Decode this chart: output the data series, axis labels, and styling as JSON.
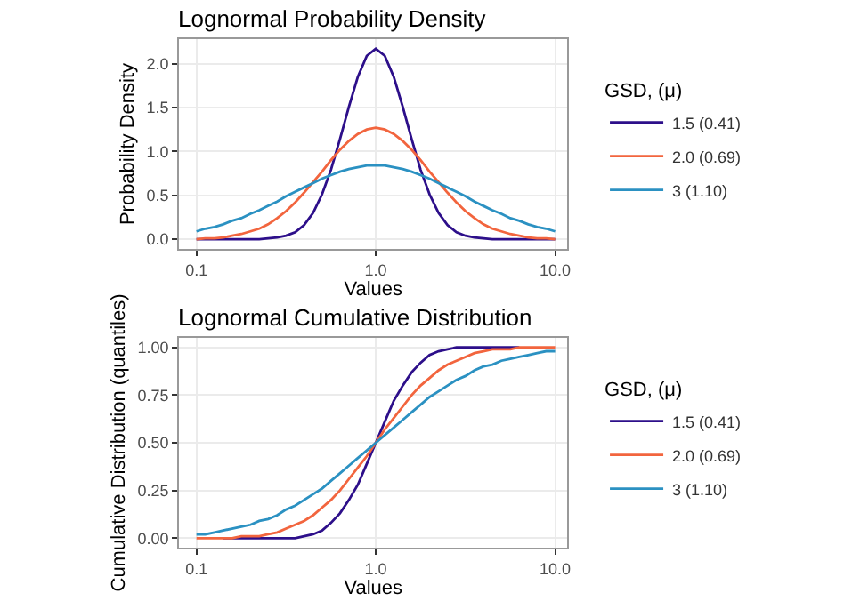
{
  "chart_data": [
    {
      "type": "line",
      "title": "Lognormal Probability Density",
      "xlabel": "Values",
      "ylabel": "Probability Density",
      "legend_title": "GSD, (μ)",
      "x": [
        0.1,
        0.112,
        0.126,
        0.141,
        0.158,
        0.178,
        0.2,
        0.224,
        0.251,
        0.282,
        0.316,
        0.355,
        0.398,
        0.447,
        0.501,
        0.562,
        0.631,
        0.708,
        0.794,
        0.891,
        1,
        1.122,
        1.259,
        1.413,
        1.585,
        1.778,
        1.995,
        2.239,
        2.512,
        2.818,
        3.162,
        3.548,
        3.981,
        4.467,
        5.012,
        5.623,
        6.31,
        7.079,
        7.943,
        8.913,
        10
      ],
      "series": [
        {
          "name": "1.5 (0.41)",
          "color": "#2d0f8a",
          "values": [
            0,
            0,
            0,
            0,
            0,
            0,
            0,
            0,
            0.01,
            0.02,
            0.04,
            0.08,
            0.16,
            0.3,
            0.51,
            0.79,
            1.14,
            1.51,
            1.85,
            2.09,
            2.17,
            2.09,
            1.85,
            1.51,
            1.14,
            0.79,
            0.51,
            0.3,
            0.16,
            0.08,
            0.04,
            0.02,
            0.01,
            0,
            0,
            0,
            0,
            0,
            0,
            0,
            0
          ]
        },
        {
          "name": "2.0 (0.69)",
          "color": "#f2653e",
          "values": [
            0.0,
            0.01,
            0.01,
            0.02,
            0.04,
            0.06,
            0.09,
            0.12,
            0.17,
            0.24,
            0.32,
            0.42,
            0.53,
            0.65,
            0.77,
            0.9,
            1.02,
            1.12,
            1.2,
            1.25,
            1.27,
            1.25,
            1.2,
            1.12,
            1.02,
            0.9,
            0.77,
            0.65,
            0.53,
            0.42,
            0.32,
            0.24,
            0.17,
            0.12,
            0.09,
            0.06,
            0.04,
            0.02,
            0.01,
            0.01,
            0.0
          ]
        },
        {
          "name": "3 (1.10)",
          "color": "#2b91c2",
          "values": [
            0.09,
            0.12,
            0.14,
            0.17,
            0.21,
            0.24,
            0.29,
            0.33,
            0.38,
            0.43,
            0.49,
            0.54,
            0.59,
            0.64,
            0.69,
            0.73,
            0.77,
            0.8,
            0.82,
            0.84,
            0.84,
            0.84,
            0.82,
            0.8,
            0.77,
            0.73,
            0.69,
            0.64,
            0.59,
            0.54,
            0.49,
            0.43,
            0.38,
            0.33,
            0.29,
            0.24,
            0.21,
            0.17,
            0.14,
            0.12,
            0.09
          ]
        }
      ],
      "xlim": [
        0.08,
        11.7
      ],
      "xticks": [
        {
          "value": 0.1,
          "label": "0.1"
        },
        {
          "value": 1,
          "label": "1.0"
        },
        {
          "value": 10,
          "label": "10.0"
        }
      ],
      "ylim": [
        -0.11,
        2.28
      ],
      "yticks": [
        {
          "value": 0,
          "label": "0.0"
        },
        {
          "value": 0.5,
          "label": "0.5"
        },
        {
          "value": 1,
          "label": "1.0"
        },
        {
          "value": 1.5,
          "label": "1.5"
        },
        {
          "value": 2,
          "label": "2.0"
        }
      ],
      "log": "x",
      "grid": true,
      "legend": "right"
    },
    {
      "type": "line",
      "title": "Lognormal Cumulative Distribution",
      "xlabel": "Values",
      "ylabel": "Cumulative Distribution (quantiles)",
      "legend_title": "GSD, (μ)",
      "x": [
        0.1,
        0.112,
        0.126,
        0.141,
        0.158,
        0.178,
        0.2,
        0.224,
        0.251,
        0.282,
        0.316,
        0.355,
        0.398,
        0.447,
        0.501,
        0.562,
        0.631,
        0.708,
        0.794,
        0.891,
        1,
        1.122,
        1.259,
        1.413,
        1.585,
        1.778,
        1.995,
        2.239,
        2.512,
        2.818,
        3.162,
        3.548,
        3.981,
        4.467,
        5.012,
        5.623,
        6.31,
        7.079,
        7.943,
        8.913,
        10
      ],
      "series": [
        {
          "name": "1.5 (0.41)",
          "color": "#2d0f8a",
          "values": [
            null,
            null,
            null,
            0,
            0,
            0,
            0,
            0,
            0,
            0,
            0,
            0,
            0.01,
            0.02,
            0.04,
            0.08,
            0.13,
            0.2,
            0.28,
            0.39,
            0.5,
            0.61,
            0.72,
            0.8,
            0.87,
            0.92,
            0.96,
            0.98,
            0.99,
            1.0,
            1.0,
            1.0,
            1.0,
            1.0,
            1.0,
            1.0,
            1.0,
            null,
            null,
            null,
            null
          ]
        },
        {
          "name": "2.0 (0.69)",
          "color": "#f2653e",
          "values": [
            0,
            0,
            0,
            0,
            0,
            0.01,
            0.01,
            0.01,
            0.02,
            0.03,
            0.05,
            0.07,
            0.09,
            0.12,
            0.16,
            0.2,
            0.25,
            0.31,
            0.37,
            0.43,
            0.5,
            0.57,
            0.63,
            0.69,
            0.75,
            0.8,
            0.84,
            0.88,
            0.91,
            0.93,
            0.95,
            0.97,
            0.98,
            0.99,
            0.99,
            0.99,
            1.0,
            1.0,
            1.0,
            1.0,
            1.0
          ]
        },
        {
          "name": "3 (1.10)",
          "color": "#2b91c2",
          "values": [
            0.02,
            0.02,
            0.03,
            0.04,
            0.05,
            0.06,
            0.07,
            0.09,
            0.1,
            0.12,
            0.15,
            0.17,
            0.2,
            0.23,
            0.26,
            0.3,
            0.34,
            0.38,
            0.42,
            0.46,
            0.5,
            0.54,
            0.58,
            0.62,
            0.66,
            0.7,
            0.74,
            0.77,
            0.8,
            0.83,
            0.85,
            0.88,
            0.9,
            0.91,
            0.93,
            0.94,
            0.95,
            0.96,
            0.97,
            0.98,
            0.98
          ]
        }
      ],
      "xlim": [
        0.08,
        11.7
      ],
      "xticks": [
        {
          "value": 0.1,
          "label": "0.1"
        },
        {
          "value": 1,
          "label": "1.0"
        },
        {
          "value": 10,
          "label": "10.0"
        }
      ],
      "ylim": [
        -0.05,
        1.05
      ],
      "yticks": [
        {
          "value": 0,
          "label": "0.00"
        },
        {
          "value": 0.25,
          "label": "0.25"
        },
        {
          "value": 0.5,
          "label": "0.50"
        },
        {
          "value": 0.75,
          "label": "0.75"
        },
        {
          "value": 1,
          "label": "1.00"
        }
      ],
      "log": "x",
      "grid": true,
      "legend": "right"
    }
  ]
}
